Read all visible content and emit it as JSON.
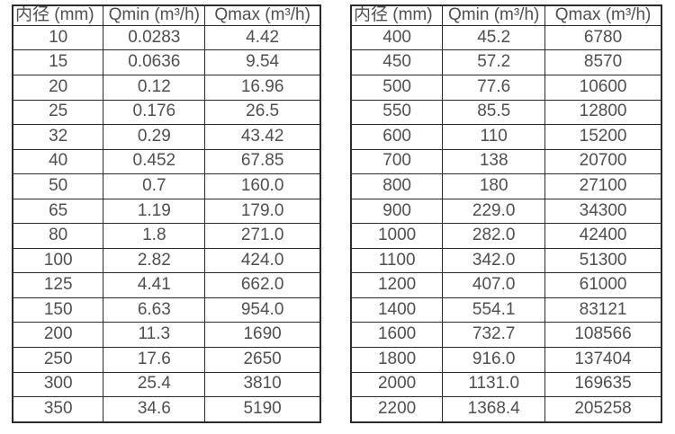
{
  "tables": [
    {
      "title": "flow-range-table-dn10-350",
      "headers": [
        "内径 (mm)",
        "Qmin (m³/h)",
        "Qmax (m³/h)"
      ],
      "rows": [
        [
          "10",
          "0.0283",
          "4.42"
        ],
        [
          "15",
          "0.0636",
          "9.54"
        ],
        [
          "20",
          "0.12",
          "16.96"
        ],
        [
          "25",
          "0.176",
          "26.5"
        ],
        [
          "32",
          "0.29",
          "43.42"
        ],
        [
          "40",
          "0.452",
          "67.85"
        ],
        [
          "50",
          "0.7",
          "160.0"
        ],
        [
          "65",
          "1.19",
          "179.0"
        ],
        [
          "80",
          "1.8",
          "271.0"
        ],
        [
          "100",
          "2.82",
          "424.0"
        ],
        [
          "125",
          "4.41",
          "662.0"
        ],
        [
          "150",
          "6.63",
          "954.0"
        ],
        [
          "200",
          "11.3",
          "1690"
        ],
        [
          "250",
          "17.6",
          "2650"
        ],
        [
          "300",
          "25.4",
          "3810"
        ],
        [
          "350",
          "34.6",
          "5190"
        ]
      ]
    },
    {
      "title": "flow-range-table-dn400-2200",
      "headers": [
        "内径 (mm)",
        "Qmin (m³/h)",
        "Qmax (m³/h)"
      ],
      "rows": [
        [
          "400",
          "45.2",
          "6780"
        ],
        [
          "450",
          "57.2",
          "8570"
        ],
        [
          "500",
          "77.6",
          "10600"
        ],
        [
          "550",
          "85.5",
          "12800"
        ],
        [
          "600",
          "110",
          "15200"
        ],
        [
          "700",
          "138",
          "20700"
        ],
        [
          "800",
          "180",
          "27100"
        ],
        [
          "900",
          "229.0",
          "34300"
        ],
        [
          "1000",
          "282.0",
          "42400"
        ],
        [
          "1100",
          "342.0",
          "51300"
        ],
        [
          "1200",
          "407.0",
          "61000"
        ],
        [
          "1400",
          "554.1",
          "83121"
        ],
        [
          "1600",
          "732.7",
          "108566"
        ],
        [
          "1800",
          "916.0",
          "137404"
        ],
        [
          "2000",
          "1131.0",
          "169635"
        ],
        [
          "2200",
          "1368.4",
          "205258"
        ]
      ]
    }
  ],
  "colors": {
    "border": "#2b2b2b",
    "text": "#4f4f4f",
    "background": "#ffffff"
  }
}
